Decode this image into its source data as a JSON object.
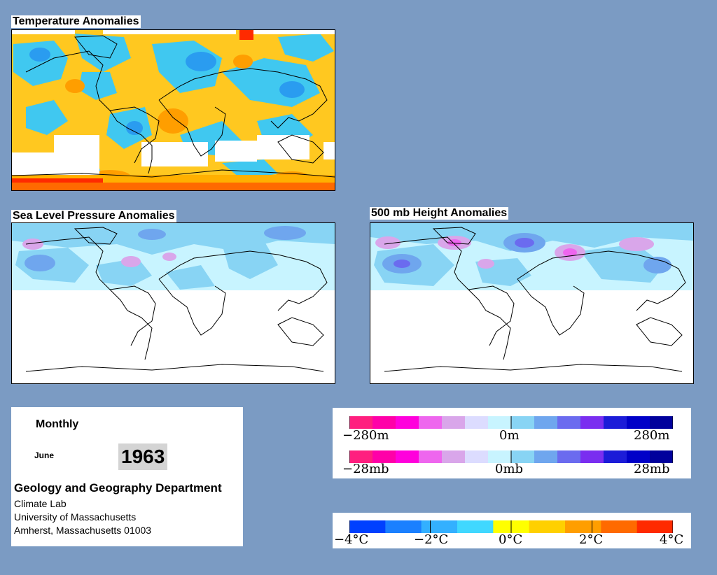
{
  "maps": {
    "temperature": {
      "title": "Temperature Anomalies"
    },
    "slp": {
      "title": "Sea Level Pressure Anomalies"
    },
    "height500": {
      "title": "500 mb Height Anomalies"
    }
  },
  "info": {
    "period": "Monthly",
    "month": "June",
    "year": "1963",
    "department": "Geology and Geography Department",
    "lines": [
      "Climate Lab",
      "University of Massachusetts",
      "Amherst, Massachusetts 01003"
    ]
  },
  "legends": {
    "height": {
      "labels": [
        "−280m",
        "0m",
        "280m"
      ]
    },
    "pressure": {
      "labels": [
        "−28mb",
        "0mb",
        "28mb"
      ]
    },
    "temperature": {
      "labels": [
        "−4°C",
        "−2°C",
        "0°C",
        "2°C",
        "4°C"
      ]
    }
  },
  "colors": {
    "background": "#7b9bc3",
    "anomaly_scale": [
      "#ff1f7f",
      "#ff00a8",
      "#ff00dc",
      "#ee66ee",
      "#d9a6ea",
      "#dcdcff",
      "#c8f4ff",
      "#88d4f4",
      "#6fa6ee",
      "#6b6bef",
      "#7a2ef0",
      "#1c1cd8",
      "#0000c8",
      "#00009c"
    ],
    "temperature_scale": [
      "#0040ff",
      "#1a80ff",
      "#33b0ff",
      "#40d8ff",
      "#ffff00",
      "#ffd000",
      "#ff9e00",
      "#ff6a00",
      "#ff2a00"
    ]
  }
}
